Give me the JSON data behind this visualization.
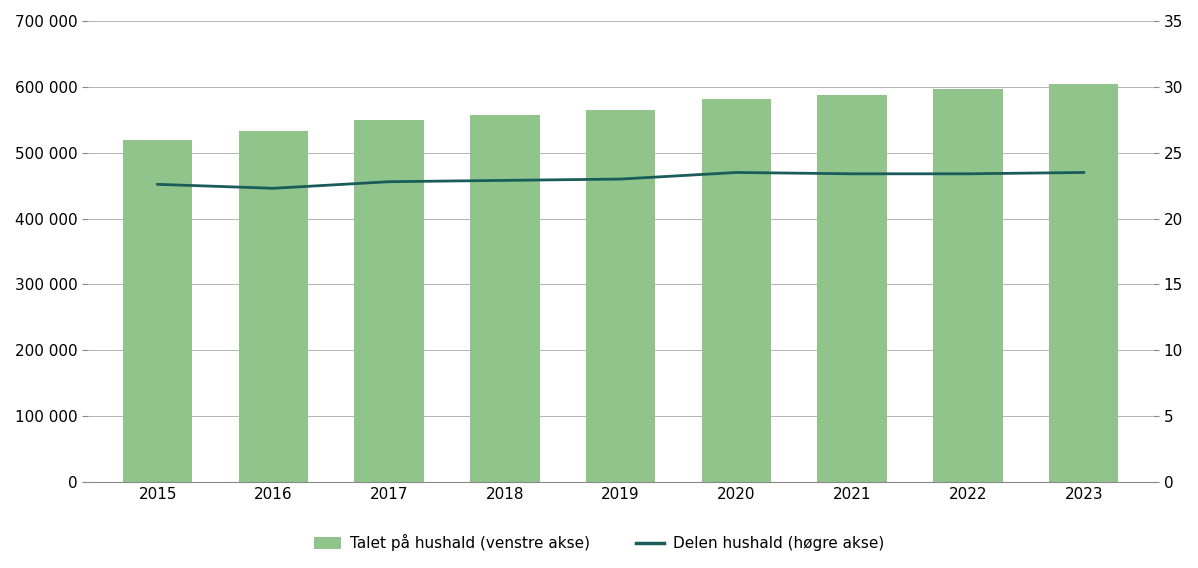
{
  "years": [
    2015,
    2016,
    2017,
    2018,
    2019,
    2020,
    2021,
    2022,
    2023
  ],
  "bar_values": [
    520000,
    533000,
    549000,
    558000,
    565000,
    581000,
    588000,
    597000,
    604000
  ],
  "line_values": [
    22.6,
    22.3,
    22.8,
    22.9,
    23.0,
    23.5,
    23.4,
    23.4,
    23.5
  ],
  "bar_color": "#90C48A",
  "bar_edgecolor": "#90C48A",
  "line_color": "#1A5C5A",
  "line_width": 2.0,
  "ylim_left": [
    0,
    700000
  ],
  "ylim_right": [
    0,
    35
  ],
  "yticks_left": [
    0,
    100000,
    200000,
    300000,
    400000,
    500000,
    600000,
    700000
  ],
  "yticks_right": [
    0,
    5,
    10,
    15,
    20,
    25,
    30,
    35
  ],
  "legend_label_bar": "Talet på hushald (venstre akse)",
  "legend_label_line": "Delen hushald (høgre akse)",
  "bg_color": "#ffffff",
  "grid_color": "#aaaaaa",
  "grid_linewidth": 0.6,
  "bar_width": 0.6,
  "tick_fontsize": 11,
  "legend_fontsize": 11
}
